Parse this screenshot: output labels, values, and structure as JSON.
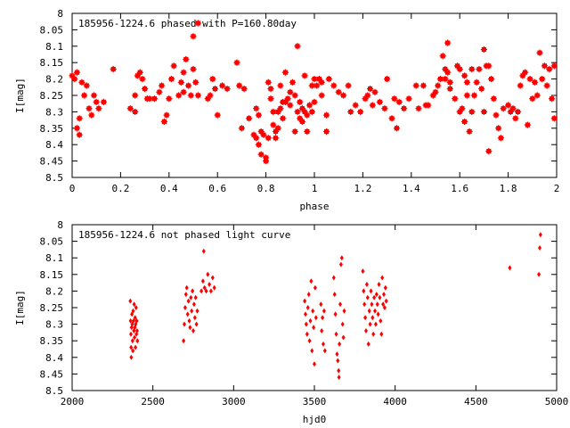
{
  "chart_data": [
    {
      "type": "scatter",
      "title": "185956-1224.6 phased with P=160.80day",
      "xlabel": "phase",
      "ylabel": "I[mag]",
      "xlim": [
        0,
        2
      ],
      "ylim": [
        8.5,
        8.0
      ],
      "y_inverted": true,
      "grid": false,
      "marker_color": "#ff0000",
      "marker_shape": "square-star",
      "x_ticks": [
        "0",
        "0.2",
        "0.4",
        "0.6",
        "0.8",
        "1",
        "1.2",
        "1.4",
        "1.6",
        "1.8",
        "2"
      ],
      "y_ticks": [
        "8",
        "8.05",
        "8.1",
        "8.15",
        "8.2",
        "8.25",
        "8.3",
        "8.35",
        "8.4",
        "8.45",
        "8.5"
      ],
      "points": [
        [
          0.0,
          8.19
        ],
        [
          0.01,
          8.2
        ],
        [
          0.02,
          8.18
        ],
        [
          0.02,
          8.35
        ],
        [
          0.03,
          8.37
        ],
        [
          0.03,
          8.32
        ],
        [
          0.04,
          8.21
        ],
        [
          0.05,
          8.25
        ],
        [
          0.06,
          8.22
        ],
        [
          0.07,
          8.29
        ],
        [
          0.08,
          8.31
        ],
        [
          0.09,
          8.25
        ],
        [
          0.1,
          8.27
        ],
        [
          0.11,
          8.29
        ],
        [
          0.13,
          8.27
        ],
        [
          0.17,
          8.17
        ],
        [
          0.24,
          8.29
        ],
        [
          0.26,
          8.25
        ],
        [
          0.26,
          8.3
        ],
        [
          0.27,
          8.19
        ],
        [
          0.28,
          8.18
        ],
        [
          0.29,
          8.2
        ],
        [
          0.3,
          8.23
        ],
        [
          0.31,
          8.26
        ],
        [
          0.32,
          8.26
        ],
        [
          0.34,
          8.26
        ],
        [
          0.36,
          8.24
        ],
        [
          0.37,
          8.22
        ],
        [
          0.38,
          8.33
        ],
        [
          0.39,
          8.31
        ],
        [
          0.4,
          8.26
        ],
        [
          0.41,
          8.2
        ],
        [
          0.42,
          8.16
        ],
        [
          0.44,
          8.25
        ],
        [
          0.45,
          8.21
        ],
        [
          0.46,
          8.18
        ],
        [
          0.46,
          8.24
        ],
        [
          0.47,
          8.14
        ],
        [
          0.48,
          8.22
        ],
        [
          0.49,
          8.25
        ],
        [
          0.5,
          8.17
        ],
        [
          0.51,
          8.21
        ],
        [
          0.52,
          8.25
        ],
        [
          0.5,
          8.07
        ],
        [
          0.52,
          8.03
        ],
        [
          0.56,
          8.26
        ],
        [
          0.57,
          8.25
        ],
        [
          0.58,
          8.2
        ],
        [
          0.59,
          8.23
        ],
        [
          0.6,
          8.31
        ],
        [
          0.62,
          8.22
        ],
        [
          0.64,
          8.23
        ],
        [
          0.68,
          8.15
        ],
        [
          0.69,
          8.22
        ],
        [
          0.7,
          8.35
        ],
        [
          0.71,
          8.23
        ],
        [
          0.73,
          8.32
        ],
        [
          0.75,
          8.37
        ],
        [
          0.76,
          8.29
        ],
        [
          0.76,
          8.38
        ],
        [
          0.77,
          8.31
        ],
        [
          0.77,
          8.4
        ],
        [
          0.78,
          8.36
        ],
        [
          0.78,
          8.43
        ],
        [
          0.79,
          8.37
        ],
        [
          0.8,
          8.44
        ],
        [
          0.8,
          8.45
        ],
        [
          0.81,
          8.38
        ],
        [
          0.81,
          8.21
        ],
        [
          0.82,
          8.23
        ],
        [
          0.82,
          8.26
        ],
        [
          0.83,
          8.3
        ],
        [
          0.83,
          8.34
        ],
        [
          0.84,
          8.36
        ],
        [
          0.84,
          8.38
        ],
        [
          0.85,
          8.35
        ],
        [
          0.85,
          8.3
        ],
        [
          0.86,
          8.29
        ],
        [
          0.86,
          8.22
        ],
        [
          0.87,
          8.27
        ],
        [
          0.87,
          8.32
        ],
        [
          0.88,
          8.18
        ],
        [
          0.88,
          8.27
        ],
        [
          0.89,
          8.26
        ],
        [
          0.9,
          8.28
        ],
        [
          0.9,
          8.24
        ],
        [
          0.91,
          8.21
        ],
        [
          0.92,
          8.36
        ],
        [
          0.93,
          8.1
        ],
        [
          0.92,
          8.25
        ],
        [
          0.93,
          8.3
        ],
        [
          0.94,
          8.27
        ],
        [
          0.94,
          8.32
        ],
        [
          0.95,
          8.29
        ],
        [
          0.95,
          8.33
        ],
        [
          0.96,
          8.19
        ],
        [
          0.96,
          8.3
        ],
        [
          0.97,
          8.31
        ],
        [
          0.97,
          8.36
        ],
        [
          0.98,
          8.28
        ],
        [
          0.99,
          8.22
        ],
        [
          0.99,
          8.3
        ],
        [
          1.0,
          8.2
        ],
        [
          1.0,
          8.27
        ],
        [
          1.01,
          8.22
        ],
        [
          1.02,
          8.2
        ],
        [
          1.03,
          8.25
        ],
        [
          1.03,
          8.21
        ],
        [
          1.05,
          8.31
        ],
        [
          1.05,
          8.36
        ],
        [
          1.06,
          8.2
        ],
        [
          1.08,
          8.22
        ],
        [
          1.1,
          8.24
        ],
        [
          1.12,
          8.25
        ],
        [
          1.14,
          8.22
        ],
        [
          1.15,
          8.3
        ],
        [
          1.17,
          8.28
        ],
        [
          1.19,
          8.3
        ],
        [
          1.21,
          8.26
        ],
        [
          1.22,
          8.25
        ],
        [
          1.23,
          8.23
        ],
        [
          1.24,
          8.28
        ],
        [
          1.25,
          8.24
        ],
        [
          1.27,
          8.27
        ],
        [
          1.29,
          8.29
        ],
        [
          1.3,
          8.2
        ],
        [
          1.32,
          8.32
        ],
        [
          1.33,
          8.26
        ],
        [
          1.34,
          8.35
        ],
        [
          1.35,
          8.27
        ],
        [
          1.37,
          8.29
        ],
        [
          1.39,
          8.26
        ],
        [
          1.42,
          8.22
        ],
        [
          1.43,
          8.29
        ],
        [
          1.45,
          8.22
        ],
        [
          1.46,
          8.28
        ],
        [
          1.47,
          8.28
        ],
        [
          1.49,
          8.25
        ],
        [
          1.5,
          8.24
        ],
        [
          1.51,
          8.22
        ],
        [
          1.52,
          8.2
        ],
        [
          1.54,
          8.2
        ],
        [
          1.56,
          8.23
        ],
        [
          1.58,
          8.26
        ],
        [
          1.6,
          8.3
        ],
        [
          1.61,
          8.29
        ],
        [
          1.62,
          8.33
        ],
        [
          1.63,
          8.21
        ],
        [
          1.64,
          8.36
        ],
        [
          1.65,
          8.3
        ],
        [
          1.67,
          8.21
        ],
        [
          1.69,
          8.23
        ],
        [
          1.7,
          8.3
        ],
        [
          1.72,
          8.42
        ],
        [
          1.73,
          8.2
        ],
        [
          1.75,
          8.31
        ],
        [
          1.76,
          8.35
        ],
        [
          1.77,
          8.38
        ],
        [
          1.53,
          8.13
        ],
        [
          1.54,
          8.17
        ],
        [
          1.55,
          8.18
        ],
        [
          1.55,
          8.09
        ],
        [
          1.56,
          8.21
        ],
        [
          1.59,
          8.16
        ],
        [
          1.6,
          8.17
        ],
        [
          1.62,
          8.19
        ],
        [
          1.63,
          8.25
        ],
        [
          1.65,
          8.17
        ],
        [
          1.66,
          8.25
        ],
        [
          1.68,
          8.17
        ],
        [
          1.7,
          8.11
        ],
        [
          1.71,
          8.16
        ],
        [
          1.72,
          8.16
        ],
        [
          1.74,
          8.26
        ],
        [
          1.78,
          8.29
        ],
        [
          1.8,
          8.28
        ],
        [
          1.81,
          8.3
        ],
        [
          1.82,
          8.29
        ],
        [
          1.83,
          8.32
        ],
        [
          1.84,
          8.3
        ],
        [
          1.85,
          8.22
        ],
        [
          1.86,
          8.19
        ],
        [
          1.87,
          8.18
        ],
        [
          1.88,
          8.34
        ],
        [
          1.89,
          8.2
        ],
        [
          1.9,
          8.26
        ],
        [
          1.91,
          8.21
        ],
        [
          1.92,
          8.25
        ],
        [
          1.93,
          8.12
        ],
        [
          1.94,
          8.2
        ],
        [
          1.95,
          8.16
        ],
        [
          1.96,
          8.22
        ],
        [
          1.97,
          8.17
        ],
        [
          1.98,
          8.26
        ],
        [
          1.99,
          8.16
        ],
        [
          1.99,
          8.32
        ]
      ]
    },
    {
      "type": "scatter",
      "title": "185956-1224.6 not phased light curve",
      "xlabel": "hjd0",
      "ylabel": "I[mag]",
      "xlim": [
        2000,
        5000
      ],
      "ylim": [
        8.5,
        8.0
      ],
      "y_inverted": true,
      "grid": false,
      "marker_color": "#ff0000",
      "marker_shape": "diamond",
      "x_ticks": [
        "2000",
        "2500",
        "3000",
        "3500",
        "4000",
        "4500",
        "5000"
      ],
      "y_ticks": [
        "8",
        "8.05",
        "8.1",
        "8.15",
        "8.2",
        "8.25",
        "8.3",
        "8.35",
        "8.4",
        "8.45",
        "8.5"
      ],
      "points": [
        [
          2360,
          8.23
        ],
        [
          2362,
          8.29
        ],
        [
          2364,
          8.33
        ],
        [
          2365,
          8.37
        ],
        [
          2366,
          8.4
        ],
        [
          2368,
          8.31
        ],
        [
          2370,
          8.27
        ],
        [
          2372,
          8.3
        ],
        [
          2374,
          8.35
        ],
        [
          2376,
          8.38
        ],
        [
          2378,
          8.26
        ],
        [
          2380,
          8.29
        ],
        [
          2382,
          8.32
        ],
        [
          2384,
          8.24
        ],
        [
          2386,
          8.34
        ],
        [
          2388,
          8.31
        ],
        [
          2390,
          8.28
        ],
        [
          2392,
          8.37
        ],
        [
          2394,
          8.3
        ],
        [
          2396,
          8.25
        ],
        [
          2398,
          8.33
        ],
        [
          2400,
          8.29
        ],
        [
          2402,
          8.32
        ],
        [
          2404,
          8.35
        ],
        [
          2690,
          8.35
        ],
        [
          2695,
          8.3
        ],
        [
          2700,
          8.25
        ],
        [
          2705,
          8.21
        ],
        [
          2710,
          8.19
        ],
        [
          2715,
          8.27
        ],
        [
          2720,
          8.23
        ],
        [
          2725,
          8.29
        ],
        [
          2730,
          8.31
        ],
        [
          2735,
          8.22
        ],
        [
          2740,
          8.26
        ],
        [
          2745,
          8.2
        ],
        [
          2750,
          8.32
        ],
        [
          2755,
          8.24
        ],
        [
          2760,
          8.28
        ],
        [
          2765,
          8.22
        ],
        [
          2770,
          8.3
        ],
        [
          2775,
          8.26
        ],
        [
          2800,
          8.2
        ],
        [
          2810,
          8.17
        ],
        [
          2815,
          8.08
        ],
        [
          2820,
          8.19
        ],
        [
          2830,
          8.2
        ],
        [
          2840,
          8.15
        ],
        [
          2850,
          8.18
        ],
        [
          2860,
          8.2
        ],
        [
          2870,
          8.16
        ],
        [
          2880,
          8.19
        ],
        [
          3440,
          8.23
        ],
        [
          3445,
          8.27
        ],
        [
          3450,
          8.3
        ],
        [
          3455,
          8.33
        ],
        [
          3460,
          8.25
        ],
        [
          3465,
          8.21
        ],
        [
          3470,
          8.35
        ],
        [
          3475,
          8.29
        ],
        [
          3480,
          8.17
        ],
        [
          3485,
          8.38
        ],
        [
          3490,
          8.26
        ],
        [
          3495,
          8.31
        ],
        [
          3500,
          8.42
        ],
        [
          3505,
          8.19
        ],
        [
          3510,
          8.28
        ],
        [
          3540,
          8.24
        ],
        [
          3545,
          8.32
        ],
        [
          3550,
          8.28
        ],
        [
          3555,
          8.36
        ],
        [
          3560,
          8.26
        ],
        [
          3565,
          8.38
        ],
        [
          3620,
          8.16
        ],
        [
          3625,
          8.21
        ],
        [
          3630,
          8.27
        ],
        [
          3635,
          8.33
        ],
        [
          3640,
          8.39
        ],
        [
          3645,
          8.41
        ],
        [
          3650,
          8.44
        ],
        [
          3652,
          8.46
        ],
        [
          3655,
          8.36
        ],
        [
          3660,
          8.24
        ],
        [
          3665,
          8.12
        ],
        [
          3670,
          8.1
        ],
        [
          3675,
          8.3
        ],
        [
          3680,
          8.34
        ],
        [
          3685,
          8.26
        ],
        [
          3800,
          8.14
        ],
        [
          3805,
          8.2
        ],
        [
          3810,
          8.24
        ],
        [
          3815,
          8.28
        ],
        [
          3820,
          8.32
        ],
        [
          3825,
          8.18
        ],
        [
          3830,
          8.22
        ],
        [
          3835,
          8.36
        ],
        [
          3840,
          8.26
        ],
        [
          3845,
          8.3
        ],
        [
          3850,
          8.2
        ],
        [
          3855,
          8.24
        ],
        [
          3860,
          8.28
        ],
        [
          3865,
          8.33
        ],
        [
          3870,
          8.22
        ],
        [
          3875,
          8.26
        ],
        [
          3880,
          8.3
        ],
        [
          3885,
          8.21
        ],
        [
          3890,
          8.24
        ],
        [
          3895,
          8.27
        ],
        [
          3900,
          8.18
        ],
        [
          3905,
          8.22
        ],
        [
          3910,
          8.29
        ],
        [
          3915,
          8.33
        ],
        [
          3920,
          8.16
        ],
        [
          3925,
          8.24
        ],
        [
          3930,
          8.21
        ],
        [
          3935,
          8.25
        ],
        [
          3940,
          8.19
        ],
        [
          3945,
          8.23
        ],
        [
          4710,
          8.13
        ],
        [
          4890,
          8.15
        ],
        [
          4895,
          8.07
        ],
        [
          4900,
          8.03
        ]
      ]
    }
  ]
}
